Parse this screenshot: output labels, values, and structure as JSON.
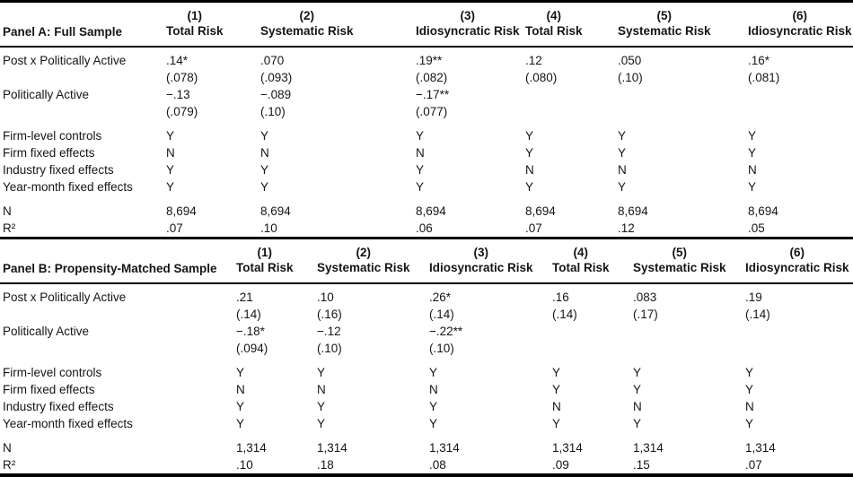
{
  "colors": {
    "text": "#151515",
    "rule": "#000000",
    "background": "#ffffff"
  },
  "panels": [
    {
      "name": "Panel A: Full Sample",
      "columns": [
        {
          "number": "(1)",
          "label": "Total Risk"
        },
        {
          "number": "(2)",
          "label": "Systematic Risk"
        },
        {
          "number": "(3)",
          "label": "Idiosyncratic Risk"
        },
        {
          "number": "(4)",
          "label": "Total Risk"
        },
        {
          "number": "(5)",
          "label": "Systematic Risk"
        },
        {
          "number": "(6)",
          "label": "Idiosyncratic Risk"
        }
      ],
      "rows": [
        {
          "label": "Post x Politically Active",
          "type": "coef",
          "cells": [
            ".14*",
            ".070",
            ".19**",
            ".12",
            ".050",
            ".16*"
          ]
        },
        {
          "label": "",
          "type": "se",
          "cells": [
            "(.078)",
            "(.093)",
            "(.082)",
            "(.080)",
            "(.10)",
            "(.081)"
          ]
        },
        {
          "label": "Politically Active",
          "type": "coef",
          "cells": [
            "−.13",
            "−.089",
            "−.17**",
            "",
            "",
            ""
          ]
        },
        {
          "label": "",
          "type": "se",
          "cells": [
            "(.079)",
            "(.10)",
            "(.077)",
            "",
            "",
            ""
          ]
        },
        {
          "label": "Firm-level controls",
          "type": "control",
          "gap": true,
          "cells": [
            "Y",
            "Y",
            "Y",
            "Y",
            "Y",
            "Y"
          ]
        },
        {
          "label": "Firm fixed effects",
          "type": "control",
          "cells": [
            "N",
            "N",
            "N",
            "Y",
            "Y",
            "Y"
          ]
        },
        {
          "label": "Industry fixed effects",
          "type": "control",
          "cells": [
            "Y",
            "Y",
            "Y",
            "N",
            "N",
            "N"
          ]
        },
        {
          "label": "Year-month fixed effects",
          "type": "control",
          "cells": [
            "Y",
            "Y",
            "Y",
            "Y",
            "Y",
            "Y"
          ]
        },
        {
          "label": "N",
          "type": "stat",
          "gap": true,
          "cells": [
            "8,694",
            "8,694",
            "8,694",
            "8,694",
            "8,694",
            "8,694"
          ]
        },
        {
          "label": "R²",
          "type": "stat",
          "cells": [
            ".07",
            ".10",
            ".06",
            ".07",
            ".12",
            ".05"
          ]
        }
      ]
    },
    {
      "name": "Panel B: Propensity-Matched Sample",
      "columns": [
        {
          "number": "(1)",
          "label": "Total Risk"
        },
        {
          "number": "(2)",
          "label": "Systematic Risk"
        },
        {
          "number": "(3)",
          "label": "Idiosyncratic Risk"
        },
        {
          "number": "(4)",
          "label": "Total Risk"
        },
        {
          "number": "(5)",
          "label": "Systematic Risk"
        },
        {
          "number": "(6)",
          "label": "Idiosyncratic Risk"
        }
      ],
      "rows": [
        {
          "label": "Post x Politically Active",
          "type": "coef",
          "cells": [
            ".21",
            ".10",
            ".26*",
            ".16",
            ".083",
            ".19"
          ]
        },
        {
          "label": "",
          "type": "se",
          "cells": [
            "(.14)",
            "(.16)",
            "(.14)",
            "(.14)",
            "(.17)",
            "(.14)"
          ]
        },
        {
          "label": "Politically Active",
          "type": "coef",
          "cells": [
            "−.18*",
            "−.12",
            "−.22**",
            "",
            "",
            ""
          ]
        },
        {
          "label": "",
          "type": "se",
          "cells": [
            "(.094)",
            "(.10)",
            "(.10)",
            "",
            "",
            ""
          ]
        },
        {
          "label": "Firm-level controls",
          "type": "control",
          "gap": true,
          "cells": [
            "Y",
            "Y",
            "Y",
            "Y",
            "Y",
            "Y"
          ]
        },
        {
          "label": "Firm fixed effects",
          "type": "control",
          "cells": [
            "N",
            "N",
            "N",
            "Y",
            "Y",
            "Y"
          ]
        },
        {
          "label": "Industry fixed effects",
          "type": "control",
          "cells": [
            "Y",
            "Y",
            "Y",
            "N",
            "N",
            "N"
          ]
        },
        {
          "label": "Year-month fixed effects",
          "type": "control",
          "cells": [
            "Y",
            "Y",
            "Y",
            "Y",
            "Y",
            "Y"
          ]
        },
        {
          "label": "N",
          "type": "stat",
          "gap": true,
          "cells": [
            "1,314",
            "1,314",
            "1,314",
            "1,314",
            "1,314",
            "1,314"
          ]
        },
        {
          "label": "R²",
          "type": "stat",
          "cells": [
            ".10",
            ".18",
            ".08",
            ".09",
            ".15",
            ".07"
          ]
        }
      ]
    }
  ]
}
